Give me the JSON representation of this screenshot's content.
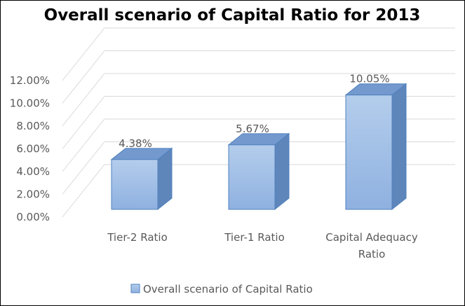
{
  "chart_data": {
    "type": "bar",
    "title": "Overall scenario of Capital Ratio for 2013",
    "categories": [
      [
        "Tier-2 Ratio"
      ],
      [
        "Tier-1 Ratio"
      ],
      [
        "Capital Adequacy",
        "Ratio"
      ]
    ],
    "series": [
      {
        "name": "Overall scenario of Capital Ratio",
        "values": [
          4.38,
          5.67,
          10.05
        ],
        "data_labels": [
          "4.38%",
          "5.67%",
          "10.05%"
        ]
      }
    ],
    "yticks": [
      0,
      2,
      4,
      6,
      8,
      10,
      12
    ],
    "ytick_labels": [
      "0.00%",
      "2.00%",
      "4.00%",
      "6.00%",
      "8.00%",
      "10.00%",
      "12.00%"
    ],
    "ylim": [
      0,
      12
    ],
    "grid": true,
    "legend_position": "bottom",
    "colors": {
      "bar_front_top": "#b4cdec",
      "bar_front_bottom": "#8fb1e0",
      "bar_side": "#5f86bb",
      "bar_top": "#7399cf",
      "bar_edge": "#4f81bd",
      "grid": "#d9d9d9",
      "text": "#595959"
    }
  }
}
